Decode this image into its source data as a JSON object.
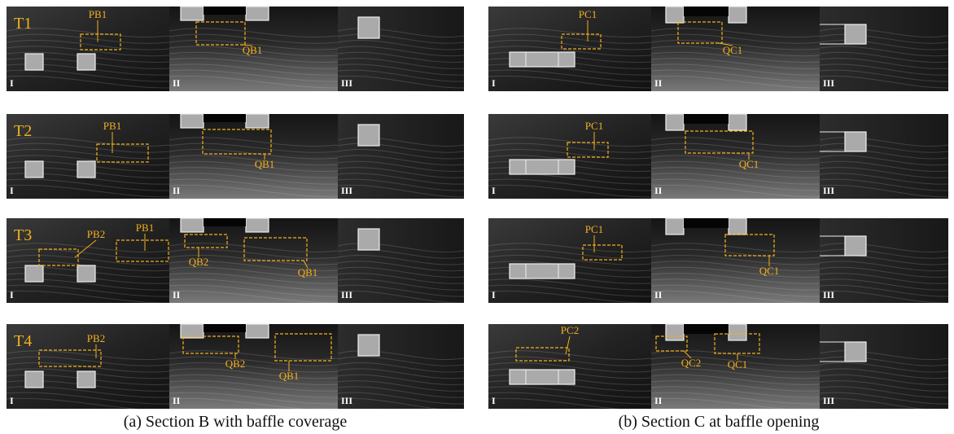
{
  "subpanels": [
    "I",
    "II",
    "III"
  ],
  "panels": [
    {
      "caption": "(a) Section B with baffle coverage",
      "rows": [
        {
          "time": "T1",
          "labels": [
            "PB1",
            "QB1"
          ]
        },
        {
          "time": "T2",
          "labels": [
            "PB1",
            "QB1"
          ]
        },
        {
          "time": "T3",
          "labels": [
            "PB2",
            "PB1",
            "QB2",
            "QB1"
          ]
        },
        {
          "time": "T4",
          "labels": [
            "PB2",
            "QB2",
            "QB1"
          ]
        }
      ]
    },
    {
      "caption": "(b) Section C at baffle opening",
      "rows": [
        {
          "labels": [
            "PC1",
            "QC1"
          ]
        },
        {
          "labels": [
            "PC1",
            "QC1"
          ]
        },
        {
          "labels": [
            "PC1",
            "QC1"
          ]
        },
        {
          "labels": [
            "PC2",
            "QC2",
            "QC1"
          ]
        }
      ]
    }
  ]
}
